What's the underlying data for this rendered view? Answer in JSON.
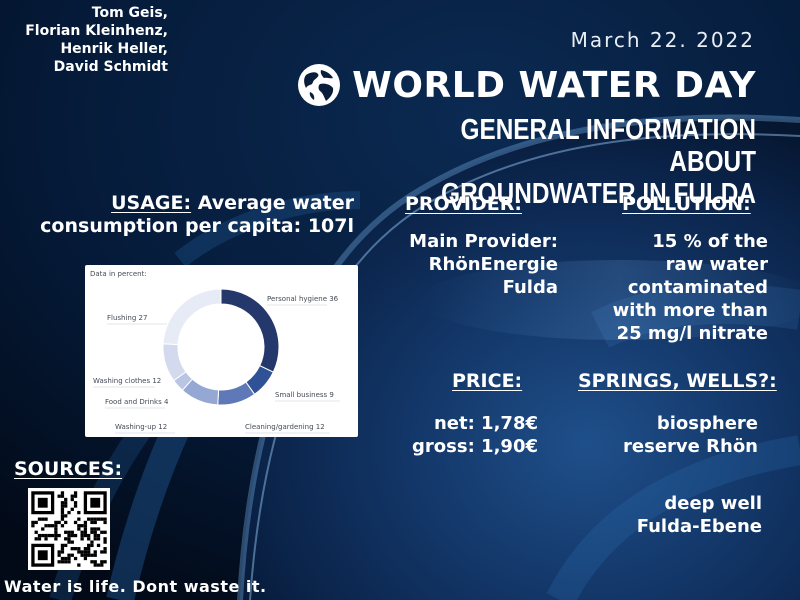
{
  "authors": [
    "Tom Geis,",
    "Florian Kleinhenz,",
    "Henrik Heller,",
    "David Schmidt"
  ],
  "date": "March 22. 2022",
  "title": "WORLD WATER DAY",
  "subtitle": [
    "GENERAL INFORMATION ABOUT",
    "GROUNDWATER IN FULDA"
  ],
  "usage": {
    "heading": "USAGE:",
    "text": " Average water consumption per capita: 107l"
  },
  "provider": {
    "heading": "PROVIDER:",
    "lines": [
      "Main Provider:",
      "RhönEnergie",
      "Fulda"
    ]
  },
  "pollution": {
    "heading": "POLLUTION:",
    "lines": [
      "15 % of the",
      "raw water",
      "contaminated",
      "with more than",
      "25 mg/l nitrate"
    ]
  },
  "price": {
    "heading": "PRICE:",
    "lines": [
      "net: 1,78€",
      "gross: 1,90€"
    ]
  },
  "springs": {
    "heading": "SPRINGS, WELLS?:",
    "group1": [
      "biosphere",
      "reserve Rhön"
    ],
    "group2": [
      "deep well",
      "Fulda-Ebene"
    ]
  },
  "sources": {
    "heading": "SOURCES:"
  },
  "slogan": "Water is life. Dont waste it.",
  "chart_data": {
    "type": "pie",
    "title": "Data in percent:",
    "categories": [
      "Personal hygiene",
      "Small business",
      "Cleaning/gardening",
      "Washing-up",
      "Food and Drinks",
      "Washing clothes",
      "Flushing"
    ],
    "values": [
      36,
      9,
      12,
      12,
      4,
      12,
      27
    ],
    "labels": [
      "Personal hygiene 36",
      "Small business 9",
      "Cleaning/gardening 12",
      "Washing-up 12",
      "Food and Drinks 4",
      "Washing clothes 12",
      "Flushing 27"
    ],
    "colors": [
      "#25386b",
      "#2f5196",
      "#5e78b8",
      "#95a7d3",
      "#b9c5e2",
      "#d3daee",
      "#e6ebf6"
    ]
  }
}
